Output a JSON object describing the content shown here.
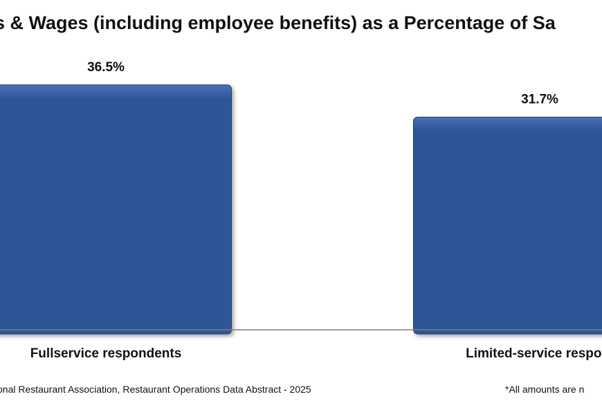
{
  "chart_data": {
    "type": "bar",
    "title": "s & Wages (including employee benefits) as a Percentage of Sa",
    "categories": [
      "Fullservice respondents",
      "Limited-service respor"
    ],
    "values": [
      36.5,
      31.7
    ],
    "value_labels": [
      "36.5%",
      "31.7%"
    ],
    "ylim": [
      0,
      40
    ],
    "grid": false,
    "legend": "none"
  },
  "footer": {
    "source": "onal Restaurant Association, Restaurant Operations Data Abstract - 2025",
    "note": "*All amounts are n"
  },
  "colors": {
    "bar": "#2f5597",
    "bar_light": "#4a72b8",
    "bar_dark": "#203c70",
    "axis": "#7f7f7f",
    "text": "#111111"
  }
}
